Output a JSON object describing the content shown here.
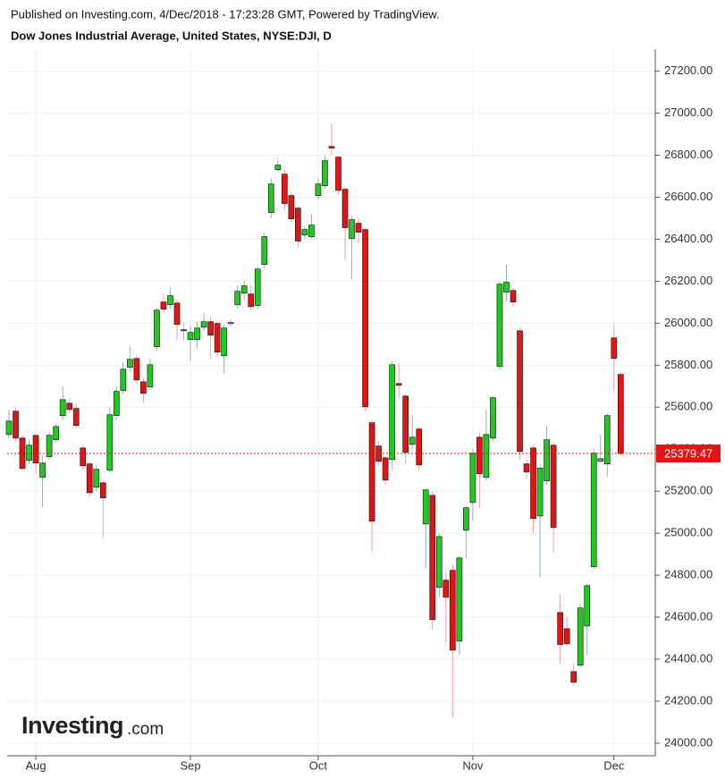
{
  "chart_data": {
    "type": "candlestick",
    "caption": "Published on Investing.com, 4/Dec/2018 - 17:23:28 GMT, Powered by TradingView.",
    "title": "Dow Jones Industrial Average, United States, NYSE:DJI, D",
    "watermark": {
      "brand": "Investing",
      "suffix": ".com"
    },
    "up_color": "#1fcb1f",
    "down_color": "#e31414",
    "grid": true,
    "categories": [
      null,
      null,
      null,
      null,
      "Aug",
      null,
      null,
      null,
      null,
      null,
      null,
      null,
      null,
      null,
      null,
      null,
      null,
      null,
      null,
      null,
      null,
      null,
      null,
      null,
      null,
      null,
      null,
      "Sep",
      null,
      null,
      null,
      null,
      null,
      null,
      null,
      null,
      null,
      null,
      null,
      null,
      null,
      null,
      null,
      null,
      null,
      null,
      "Oct",
      null,
      null,
      null,
      null,
      null,
      null,
      null,
      null,
      null,
      null,
      null,
      null,
      null,
      null,
      null,
      null,
      null,
      null,
      null,
      null,
      null,
      null,
      "Nov",
      null,
      null,
      null,
      null,
      null,
      null,
      null,
      null,
      null,
      null,
      null,
      null,
      null,
      null,
      null,
      null,
      null,
      null,
      null,
      null,
      "Dec",
      null
    ],
    "open": [
      25470,
      25581,
      25453,
      25347,
      25466,
      25266,
      25364,
      25445,
      25560,
      25619,
      25594,
      25406,
      25330,
      25219,
      25240,
      25300,
      25560,
      25679,
      25790,
      25832,
      25721,
      25696,
      25888,
      26101,
      26088,
      26096,
      25969,
      25922,
      25922,
      25981,
      26007,
      25999,
      25845,
      25998,
      26088,
      26143,
      26139,
      26084,
      26280,
      26527,
      26731,
      26710,
      26608,
      26548,
      26420,
      26412,
      26608,
      26655,
      26842,
      26791,
      26638,
      26403,
      26476,
      26446,
      25526,
      25415,
      25359,
      25351,
      25713,
      25653,
      25423,
      25496,
      25044,
      25180,
      24742,
      24776,
      24823,
      24486,
      25014,
      25146,
      25457,
      25266,
      25453,
      25794,
      26148,
      26156,
      25964,
      25330,
      25406,
      25082,
      25249,
      25419,
      24622,
      24545,
      24341,
      24371,
      24558,
      24840,
      25342,
      25330,
      25930,
      25756
    ],
    "high": [
      25590,
      25600,
      25465,
      25440,
      25475,
      25370,
      25480,
      25520,
      25700,
      25640,
      25620,
      25420,
      25340,
      25330,
      25250,
      25600,
      25700,
      25815,
      25890,
      25850,
      25740,
      25830,
      26075,
      26140,
      26170,
      26110,
      26000,
      25990,
      26010,
      26050,
      26030,
      26010,
      25990,
      26020,
      26180,
      26200,
      26180,
      26270,
      26430,
      26690,
      26775,
      26730,
      26625,
      26560,
      26460,
      26520,
      26690,
      26800,
      26950,
      26800,
      26650,
      26510,
      26500,
      26455,
      25540,
      25440,
      25370,
      25820,
      25810,
      25660,
      25560,
      25510,
      25215,
      25200,
      25000,
      24810,
      24850,
      24890,
      25130,
      25400,
      25480,
      25590,
      25650,
      26200,
      26280,
      26170,
      25980,
      25350,
      25420,
      25330,
      25510,
      25430,
      24710,
      24600,
      24380,
      24660,
      24760,
      25400,
      25470,
      25570,
      25990,
      25770
    ],
    "low": [
      25453,
      25440,
      25295,
      25330,
      25283,
      25125,
      25350,
      25430,
      25540,
      25575,
      25500,
      25300,
      25170,
      25200,
      24975,
      25290,
      25540,
      25660,
      25770,
      25710,
      25620,
      25680,
      25870,
      26050,
      26070,
      25920,
      25920,
      25820,
      25880,
      25960,
      25830,
      25840,
      25760,
      25985,
      26070,
      26110,
      26060,
      26070,
      26260,
      26500,
      26720,
      26540,
      26480,
      26360,
      26400,
      26400,
      26590,
      26640,
      26800,
      26610,
      26300,
      26210,
      26380,
      25580,
      24910,
      25320,
      25230,
      25300,
      25640,
      25330,
      25400,
      25300,
      24830,
      24540,
      24700,
      24480,
      24120,
      24420,
      24880,
      25060,
      25120,
      25250,
      25440,
      25780,
      26100,
      26080,
      25350,
      25260,
      25000,
      24790,
      25230,
      24910,
      24380,
      24460,
      24275,
      24360,
      24420,
      24830,
      25340,
      25270,
      25680,
      25370
    ],
    "close": [
      25534,
      25453,
      25308,
      25419,
      25334,
      25334,
      25466,
      25508,
      25636,
      25589,
      25513,
      25321,
      25193,
      25304,
      25168,
      25564,
      25675,
      25781,
      25828,
      25730,
      25666,
      25802,
      26062,
      26067,
      26131,
      25994,
      25964,
      25956,
      25977,
      26007,
      25943,
      25862,
      25977,
      26003,
      26152,
      26178,
      26079,
      26258,
      26412,
      26663,
      26753,
      26570,
      26497,
      26391,
      26446,
      26467,
      26663,
      26774,
      26834,
      26633,
      26455,
      26493,
      26433,
      25602,
      25057,
      25342,
      25253,
      25802,
      25704,
      25385,
      25457,
      25325,
      25206,
      24588,
      24984,
      24695,
      24443,
      24882,
      25121,
      25381,
      25283,
      25470,
      25645,
      26186,
      26195,
      26101,
      25389,
      25291,
      25070,
      25310,
      25445,
      25027,
      24469,
      24473,
      24290,
      24644,
      24750,
      25381,
      25355,
      25560,
      25832,
      25379.47
    ],
    "price_line": 25379.47,
    "ylim": [
      23940,
      27305
    ],
    "yticks": [
      {
        "value": 24000,
        "label": "24000.00"
      },
      {
        "value": 24200,
        "label": "24200.00"
      },
      {
        "value": 24400,
        "label": "24400.00"
      },
      {
        "value": 24600,
        "label": "24600.00"
      },
      {
        "value": 24800,
        "label": "24800.00"
      },
      {
        "value": 25000,
        "label": "25000.00"
      },
      {
        "value": 25200,
        "label": "25200.00"
      },
      {
        "value": 25400,
        "label": "25400.00"
      },
      {
        "value": 25600,
        "label": "25600.00"
      },
      {
        "value": 25800,
        "label": "25800.00"
      },
      {
        "value": 26000,
        "label": "26000.00"
      },
      {
        "value": 26200,
        "label": "26200.00"
      },
      {
        "value": 26400,
        "label": "26400.00"
      },
      {
        "value": 26600,
        "label": "26600.00"
      },
      {
        "value": 26800,
        "label": "26800.00"
      },
      {
        "value": 27000,
        "label": "27000.00"
      },
      {
        "value": 27200,
        "label": "27200.00"
      }
    ]
  }
}
